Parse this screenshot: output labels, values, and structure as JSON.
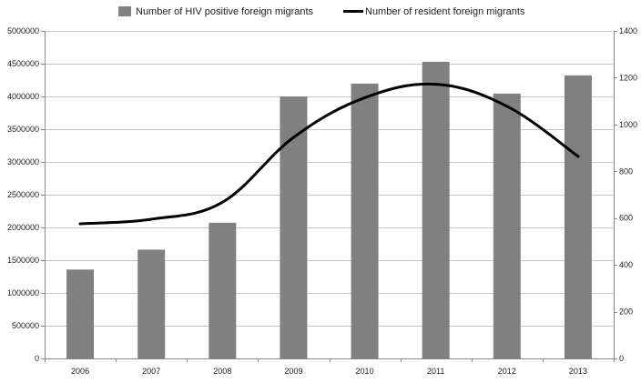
{
  "chart_data": {
    "type": "bar",
    "categories": [
      "2006",
      "2007",
      "2008",
      "2009",
      "2010",
      "2011",
      "2012",
      "2013"
    ],
    "series": [
      {
        "name": "Number of HIV positive foreign migrants",
        "type": "bar",
        "axis": "right",
        "values": [
          380,
          465,
          580,
          1120,
          1175,
          1268,
          1132,
          1210
        ],
        "color": "#808080"
      },
      {
        "name": "Number of resident foreign migrants",
        "type": "line",
        "axis": "left",
        "values": [
          2055000,
          2125000,
          2385000,
          3375000,
          3980000,
          4185000,
          3850000,
          3085000
        ],
        "color": "#000000"
      }
    ],
    "left_axis": {
      "ylim": [
        0,
        5000000
      ],
      "ticks": [
        "0",
        "500000",
        "1000000",
        "1500000",
        "2000000",
        "2500000",
        "3000000",
        "3500000",
        "4000000",
        "4500000",
        "5000000"
      ]
    },
    "right_axis": {
      "ylim": [
        0,
        1400
      ],
      "ticks": [
        "0",
        "200",
        "400",
        "600",
        "800",
        "1000",
        "1200",
        "1400"
      ]
    },
    "grid": true,
    "legend_position": "top-center"
  }
}
